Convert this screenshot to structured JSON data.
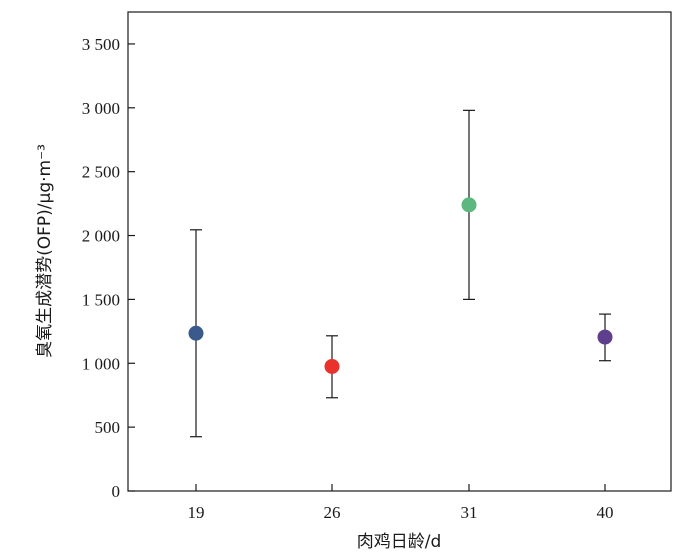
{
  "chart_data": {
    "type": "scatter",
    "xlabel": "肉鸡日龄/d",
    "ylabel": "臭氧生成潜势(OFP)/μg·m⁻³",
    "categories": [
      "19",
      "26",
      "31",
      "40"
    ],
    "values": [
      1235,
      975,
      2240,
      1205
    ],
    "error_low": [
      425,
      730,
      1500,
      1020
    ],
    "error_high": [
      2045,
      1215,
      2980,
      1385
    ],
    "point_colors": [
      "#3a5a8c",
      "#e8322b",
      "#5cb87e",
      "#5e3f8e"
    ],
    "ylim": [
      0,
      3750
    ],
    "yticks": [
      0,
      500,
      1000,
      1500,
      2000,
      2500,
      3000,
      3500
    ],
    "ytick_labels": [
      "0",
      "500",
      "1 000",
      "1 500",
      "2 000",
      "2 500",
      "3 000",
      "3 500"
    ],
    "grid": false,
    "legend": "none"
  }
}
